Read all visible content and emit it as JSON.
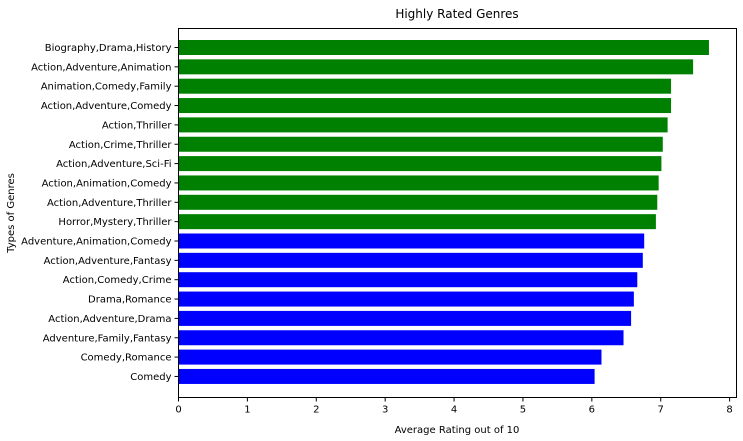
{
  "chart_data": {
    "type": "bar",
    "orientation": "horizontal",
    "title": "Highly Rated Genres",
    "xlabel": "Average Rating out of 10",
    "ylabel": "Types of Genres",
    "xlim": [
      0,
      8.1
    ],
    "xticks": [
      0,
      1,
      2,
      3,
      4,
      5,
      6,
      7,
      8
    ],
    "grid": false,
    "categories": [
      "Biography,Drama,History",
      "Action,Adventure,Animation",
      "Animation,Comedy,Family",
      "Action,Adventure,Comedy",
      "Action,Thriller",
      "Action,Crime,Thriller",
      "Action,Adventure,Sci-Fi",
      "Action,Animation,Comedy",
      "Action,Adventure,Thriller",
      "Horror,Mystery,Thriller",
      "Adventure,Animation,Comedy",
      "Action,Adventure,Fantasy",
      "Action,Comedy,Crime",
      "Drama,Romance",
      "Action,Adventure,Drama",
      "Adventure,Family,Fantasy",
      "Comedy,Romance",
      "Comedy"
    ],
    "values": [
      7.7,
      7.47,
      7.15,
      7.15,
      7.1,
      7.03,
      7.01,
      6.97,
      6.95,
      6.93,
      6.76,
      6.74,
      6.66,
      6.61,
      6.57,
      6.46,
      6.14,
      6.04
    ],
    "colors": [
      "#008000",
      "#008000",
      "#008000",
      "#008000",
      "#008000",
      "#008000",
      "#008000",
      "#008000",
      "#008000",
      "#008000",
      "#0000ff",
      "#0000ff",
      "#0000ff",
      "#0000ff",
      "#0000ff",
      "#0000ff",
      "#0000ff",
      "#0000ff"
    ]
  }
}
